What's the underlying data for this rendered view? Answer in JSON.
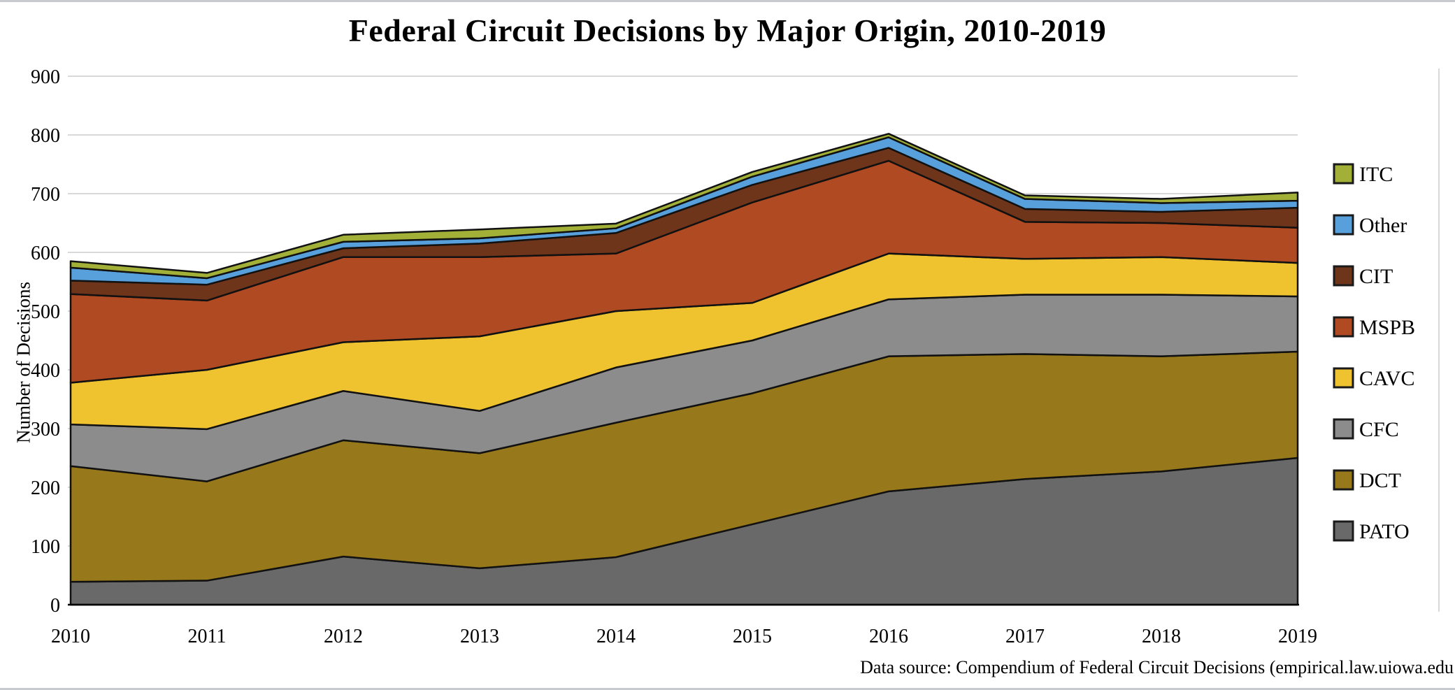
{
  "title": "Federal Circuit Decisions by Major Origin, 2010-2019",
  "y_axis": {
    "label": "Number of Decisions"
  },
  "footer": "Data source: Compendium of Federal Circuit Decisions (empirical.law.uiowa.edu",
  "colors": {
    "grid": "#d9d9d9",
    "axis": "#000000",
    "outline": "#111111",
    "plot_right_border": "#d9d9d9"
  },
  "chart_data": {
    "type": "area",
    "stacked": true,
    "title": "Federal Circuit Decisions by Major Origin, 2010-2019",
    "xlabel": "",
    "ylabel": "Number of Decisions",
    "x": [
      2010,
      2011,
      2012,
      2013,
      2014,
      2015,
      2016,
      2017,
      2018,
      2019
    ],
    "ylim": [
      0,
      900
    ],
    "ytick_step": 100,
    "grid": true,
    "legend_position": "right",
    "legend_order_top_to_bottom": [
      "ITC",
      "Other",
      "CIT",
      "MSPB",
      "CAVC",
      "CFC",
      "DCT",
      "PATO"
    ],
    "series": [
      {
        "name": "PATO",
        "color": "#696969",
        "values": [
          39,
          41,
          82,
          62,
          81,
          137,
          193,
          214,
          227,
          250
        ]
      },
      {
        "name": "DCT",
        "color": "#97781b",
        "values": [
          197,
          169,
          198,
          196,
          229,
          223,
          230,
          213,
          196,
          181
        ]
      },
      {
        "name": "CFC",
        "color": "#8c8c8c",
        "values": [
          71,
          89,
          84,
          72,
          94,
          90,
          97,
          101,
          105,
          94
        ]
      },
      {
        "name": "CAVC",
        "color": "#efc32f",
        "values": [
          71,
          101,
          83,
          127,
          96,
          64,
          78,
          61,
          64,
          57
        ]
      },
      {
        "name": "MSPB",
        "color": "#b04a22",
        "values": [
          151,
          118,
          145,
          135,
          98,
          171,
          158,
          63,
          58,
          60
        ]
      },
      {
        "name": "CIT",
        "color": "#6e351b",
        "values": [
          23,
          27,
          15,
          23,
          35,
          30,
          22,
          22,
          19,
          34
        ]
      },
      {
        "name": "Other",
        "color": "#58a0dc",
        "values": [
          22,
          11,
          11,
          9,
          8,
          14,
          18,
          17,
          15,
          12
        ]
      },
      {
        "name": "ITC",
        "color": "#a2b038",
        "values": [
          11,
          9,
          12,
          15,
          8,
          8,
          6,
          6,
          7,
          14
        ]
      }
    ],
    "totals": [
      585,
      565,
      630,
      639,
      649,
      737,
      802,
      697,
      691,
      702
    ]
  }
}
